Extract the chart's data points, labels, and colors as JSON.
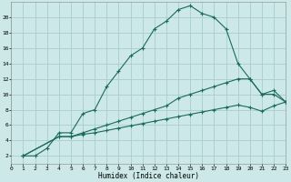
{
  "xlabel": "Humidex (Indice chaleur)",
  "bg_color": "#cce8e8",
  "grid_color": "#aacccc",
  "line_color": "#1a6b5a",
  "line1_x": [
    1,
    2,
    3,
    4,
    5,
    6,
    7,
    8,
    9,
    10,
    11,
    12,
    13,
    14,
    15,
    16,
    17,
    18,
    19,
    20,
    21,
    22,
    23
  ],
  "line1_y": [
    2,
    2,
    3,
    5,
    5,
    7.5,
    8,
    11,
    13,
    15,
    16,
    18.5,
    19.5,
    21,
    21.5,
    20.5,
    20,
    18.5,
    14,
    12,
    10,
    10.5,
    9
  ],
  "line2_x": [
    1,
    4,
    5,
    6,
    7,
    8,
    9,
    10,
    11,
    12,
    13,
    14,
    15,
    16,
    17,
    18,
    19,
    20,
    21,
    22,
    23
  ],
  "line2_y": [
    2,
    4.5,
    4.5,
    5.0,
    5.5,
    6.0,
    6.5,
    7.0,
    7.5,
    8.0,
    8.5,
    9.5,
    10.0,
    10.5,
    11.0,
    11.5,
    12.0,
    12.0,
    10.0,
    10.0,
    9.0
  ],
  "line3_x": [
    1,
    4,
    5,
    6,
    7,
    8,
    9,
    10,
    11,
    12,
    13,
    14,
    15,
    16,
    17,
    18,
    19,
    20,
    21,
    22,
    23
  ],
  "line3_y": [
    2,
    4.5,
    4.5,
    4.8,
    5.0,
    5.3,
    5.6,
    5.9,
    6.2,
    6.5,
    6.8,
    7.1,
    7.4,
    7.7,
    8.0,
    8.3,
    8.6,
    8.3,
    7.8,
    8.5,
    9.0
  ],
  "xlim": [
    0,
    23
  ],
  "ylim": [
    1,
    22
  ],
  "xticks": [
    0,
    1,
    2,
    3,
    4,
    5,
    6,
    7,
    8,
    9,
    10,
    11,
    12,
    13,
    14,
    15,
    16,
    17,
    18,
    19,
    20,
    21,
    22,
    23
  ],
  "yticks": [
    2,
    4,
    6,
    8,
    10,
    12,
    14,
    16,
    18,
    20
  ],
  "xlabel_fontsize": 5.5,
  "tick_fontsize": 4.5
}
